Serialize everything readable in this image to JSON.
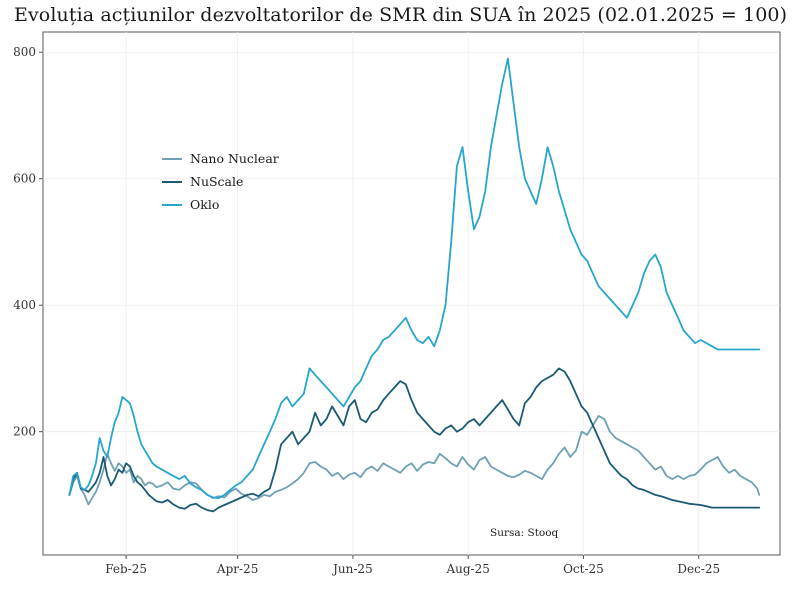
{
  "title": "Evoluția acțiunilor dezvoltatorilor de SMR din SUA în 2025 (02.01.2025 = 100)",
  "chart_data": {
    "type": "line",
    "title": "Evoluția acțiunilor dezvoltatorilor de SMR din SUA în 2025 (02.01.2025 = 100)",
    "xlabel": "",
    "ylabel": "",
    "x_tick_labels": [
      "Feb-25",
      "Apr-25",
      "Jun-25",
      "Aug-25",
      "Oct-25",
      "Dec-25"
    ],
    "x_tick_days": [
      31,
      90,
      151,
      212,
      273,
      334
    ],
    "x_range_days": [
      -13,
      377
    ],
    "y_ticks": [
      200,
      400,
      600,
      800
    ],
    "ylim": [
      5,
      832
    ],
    "grid": true,
    "legend_position": "upper-left",
    "source": "Sursa: Stooq",
    "series": [
      {
        "name": "Nano Nuclear",
        "color": "#6fa0b5",
        "days": [
          1,
          3,
          5,
          7,
          9,
          11,
          13,
          15,
          17,
          19,
          21,
          23,
          25,
          27,
          29,
          31,
          33,
          35,
          37,
          39,
          41,
          43,
          45,
          47,
          50,
          53,
          56,
          59,
          62,
          65,
          68,
          71,
          74,
          77,
          80,
          83,
          86,
          89,
          92,
          95,
          98,
          101,
          104,
          107,
          110,
          113,
          116,
          119,
          122,
          125,
          128,
          131,
          134,
          137,
          140,
          143,
          146,
          149,
          152,
          155,
          158,
          161,
          164,
          167,
          170,
          173,
          176,
          179,
          182,
          185,
          188,
          191,
          194,
          197,
          200,
          203,
          206,
          209,
          212,
          215,
          218,
          221,
          224,
          227,
          230,
          233,
          236,
          239,
          242,
          245,
          248,
          251,
          254,
          257,
          260,
          263,
          266,
          269,
          272,
          275,
          278,
          281,
          284,
          287,
          290,
          293,
          296,
          299,
          302,
          305,
          308,
          311,
          314,
          317,
          320,
          323,
          326,
          329,
          332,
          335,
          338,
          341,
          344,
          347,
          350,
          353,
          356,
          359,
          362,
          365,
          366
        ],
        "values": [
          100,
          120,
          130,
          110,
          100,
          85,
          95,
          105,
          120,
          140,
          165,
          150,
          138,
          150,
          145,
          135,
          140,
          120,
          130,
          125,
          115,
          120,
          118,
          112,
          115,
          120,
          110,
          108,
          115,
          120,
          118,
          108,
          100,
          95,
          98,
          96,
          105,
          110,
          102,
          98,
          92,
          95,
          100,
          98,
          105,
          108,
          112,
          118,
          125,
          135,
          150,
          152,
          145,
          140,
          130,
          135,
          125,
          132,
          135,
          128,
          140,
          145,
          138,
          150,
          145,
          140,
          135,
          145,
          150,
          138,
          148,
          152,
          150,
          165,
          158,
          150,
          145,
          160,
          148,
          140,
          155,
          160,
          145,
          140,
          135,
          130,
          128,
          132,
          138,
          135,
          130,
          125,
          140,
          150,
          165,
          175,
          160,
          170,
          200,
          195,
          210,
          225,
          220,
          200,
          190,
          185,
          180,
          175,
          170,
          160,
          150,
          140,
          145,
          130,
          125,
          130,
          125,
          130,
          132,
          140,
          150,
          155,
          160,
          145,
          135,
          140,
          130,
          125,
          120,
          110,
          100
        ]
      },
      {
        "name": "NuScale",
        "color": "#1a5a75",
        "days": [
          1,
          3,
          5,
          7,
          9,
          11,
          13,
          15,
          17,
          19,
          21,
          23,
          25,
          27,
          29,
          31,
          33,
          35,
          37,
          39,
          41,
          43,
          45,
          47,
          50,
          53,
          56,
          59,
          62,
          65,
          68,
          71,
          74,
          77,
          80,
          83,
          86,
          89,
          92,
          95,
          98,
          101,
          104,
          107,
          110,
          113,
          116,
          119,
          122,
          125,
          128,
          131,
          134,
          137,
          140,
          143,
          146,
          149,
          152,
          155,
          158,
          161,
          164,
          167,
          170,
          173,
          176,
          179,
          182,
          185,
          188,
          191,
          194,
          197,
          200,
          203,
          206,
          209,
          212,
          215,
          218,
          221,
          224,
          227,
          230,
          233,
          236,
          239,
          242,
          245,
          248,
          251,
          254,
          257,
          260,
          263,
          266,
          269,
          272,
          275,
          278,
          281,
          284,
          287,
          290,
          293,
          296,
          299,
          302,
          305,
          308,
          311,
          314,
          317,
          320,
          323,
          326,
          329,
          332,
          335,
          338,
          341,
          344,
          347,
          350,
          353,
          356,
          359,
          362,
          365,
          366
        ],
        "values": [
          100,
          125,
          135,
          110,
          108,
          105,
          112,
          120,
          135,
          160,
          130,
          115,
          125,
          140,
          135,
          150,
          145,
          130,
          120,
          115,
          108,
          100,
          95,
          90,
          88,
          92,
          85,
          80,
          78,
          84,
          86,
          80,
          76,
          74,
          80,
          84,
          88,
          92,
          96,
          100,
          102,
          98,
          105,
          110,
          140,
          180,
          190,
          200,
          180,
          190,
          200,
          230,
          210,
          220,
          240,
          225,
          210,
          240,
          250,
          220,
          215,
          230,
          235,
          250,
          260,
          270,
          280,
          275,
          250,
          230,
          220,
          210,
          200,
          195,
          205,
          210,
          200,
          205,
          215,
          220,
          210,
          220,
          230,
          240,
          250,
          235,
          220,
          210,
          245,
          255,
          270,
          280,
          285,
          290,
          300,
          295,
          280,
          260,
          240,
          230,
          210,
          190,
          170,
          150,
          140,
          130,
          125,
          115,
          110,
          108,
          104,
          100,
          98,
          95,
          92,
          90,
          88,
          86,
          85,
          84,
          82,
          80,
          80,
          80,
          80,
          80,
          80,
          80,
          80,
          80,
          80
        ]
      },
      {
        "name": "Oklo",
        "color": "#26a6cc",
        "days": [
          1,
          3,
          5,
          7,
          9,
          11,
          13,
          15,
          17,
          19,
          21,
          23,
          25,
          27,
          29,
          31,
          33,
          35,
          37,
          39,
          41,
          43,
          45,
          47,
          50,
          53,
          56,
          59,
          62,
          65,
          68,
          71,
          74,
          77,
          80,
          83,
          86,
          89,
          92,
          95,
          98,
          101,
          104,
          107,
          110,
          113,
          116,
          119,
          122,
          125,
          128,
          131,
          134,
          137,
          140,
          143,
          146,
          149,
          152,
          155,
          158,
          161,
          164,
          167,
          170,
          173,
          176,
          179,
          182,
          185,
          188,
          191,
          194,
          197,
          200,
          203,
          206,
          209,
          212,
          215,
          218,
          221,
          224,
          227,
          230,
          233,
          236,
          239,
          242,
          245,
          248,
          251,
          254,
          257,
          260,
          263,
          266,
          269,
          272,
          275,
          278,
          281,
          284,
          287,
          290,
          293,
          296,
          299,
          302,
          305,
          308,
          311,
          314,
          317,
          320,
          323,
          326,
          329,
          332,
          335,
          338,
          341,
          344,
          347,
          350,
          353,
          356,
          359,
          362,
          365,
          366
        ],
        "values": [
          100,
          130,
          135,
          112,
          108,
          115,
          130,
          150,
          190,
          170,
          160,
          190,
          215,
          230,
          255,
          250,
          245,
          225,
          200,
          180,
          170,
          160,
          150,
          145,
          140,
          135,
          130,
          125,
          130,
          118,
          112,
          108,
          100,
          96,
          95,
          100,
          108,
          115,
          120,
          130,
          140,
          160,
          180,
          200,
          220,
          245,
          255,
          240,
          250,
          260,
          300,
          290,
          280,
          270,
          260,
          250,
          240,
          255,
          270,
          280,
          300,
          320,
          330,
          345,
          350,
          360,
          370,
          380,
          360,
          345,
          340,
          350,
          335,
          360,
          400,
          500,
          620,
          650,
          580,
          520,
          540,
          580,
          650,
          700,
          750,
          790,
          720,
          650,
          600,
          580,
          560,
          600,
          650,
          620,
          580,
          550,
          520,
          500,
          480,
          470,
          450,
          430,
          420,
          410,
          400,
          390,
          380,
          400,
          420,
          450,
          470,
          480,
          460,
          420,
          400,
          380,
          360,
          350,
          340,
          345,
          340,
          335,
          330,
          330,
          330,
          330,
          330,
          330,
          330,
          330,
          330
        ]
      }
    ]
  }
}
